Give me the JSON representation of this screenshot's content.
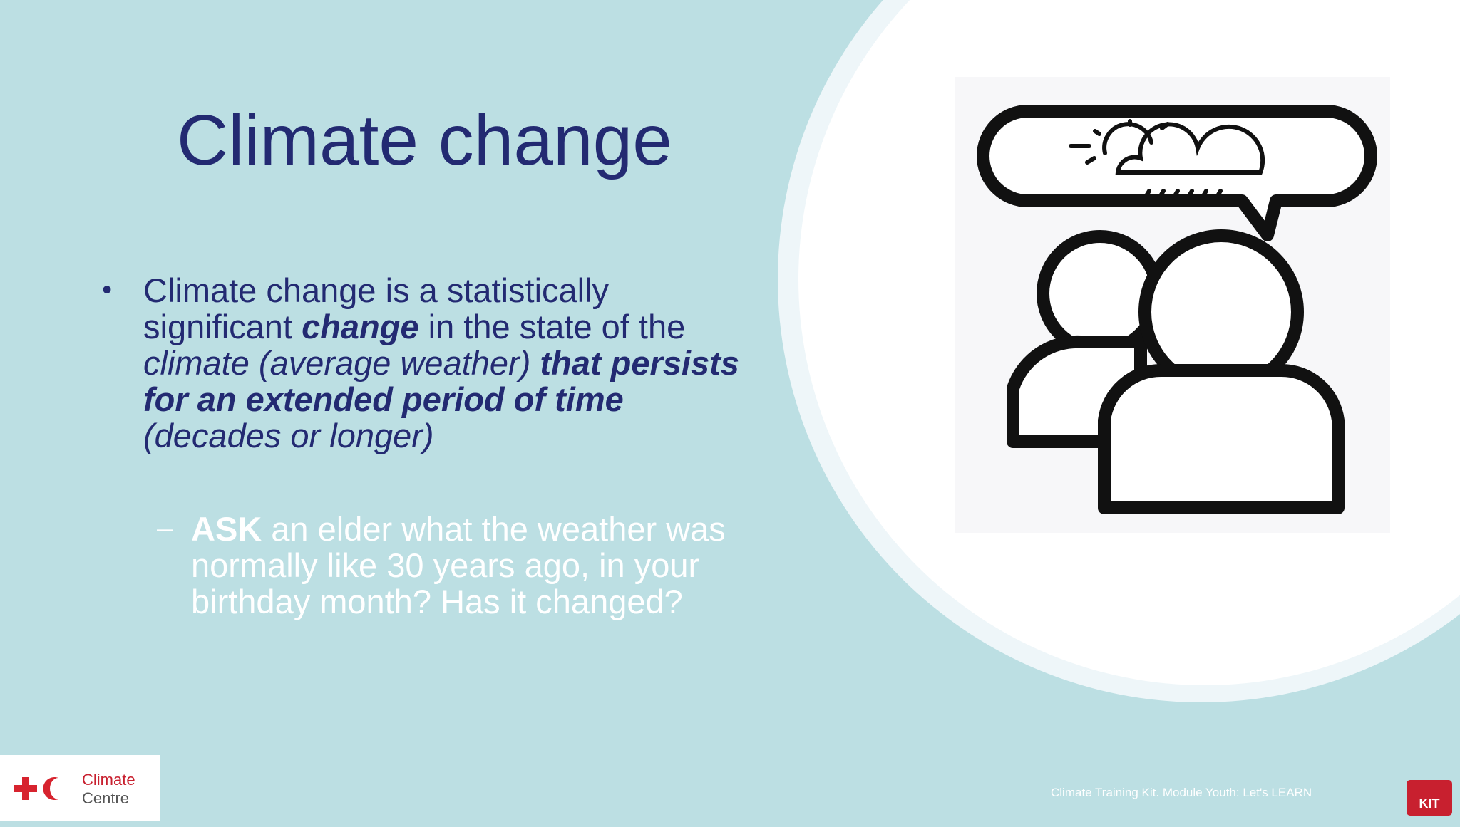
{
  "slide": {
    "title": "Climate change",
    "bullet": {
      "runs": [
        "Climate change is a statistically significant ",
        "change",
        " in the state of the ",
        "climate (average weather) ",
        "that persists for an extended period of time",
        " (decades or longer)"
      ]
    },
    "sub_bullet": {
      "runs": [
        "ASK",
        " an elder what the weather was normally like 30 years ago, in your birthday month? Has it changed?"
      ]
    },
    "logo": {
      "line1": "Climate",
      "line2": "Centre"
    },
    "footer": "Climate Training Kit. Module Youth: Let's LEARN",
    "kit_badge": "KIT"
  }
}
